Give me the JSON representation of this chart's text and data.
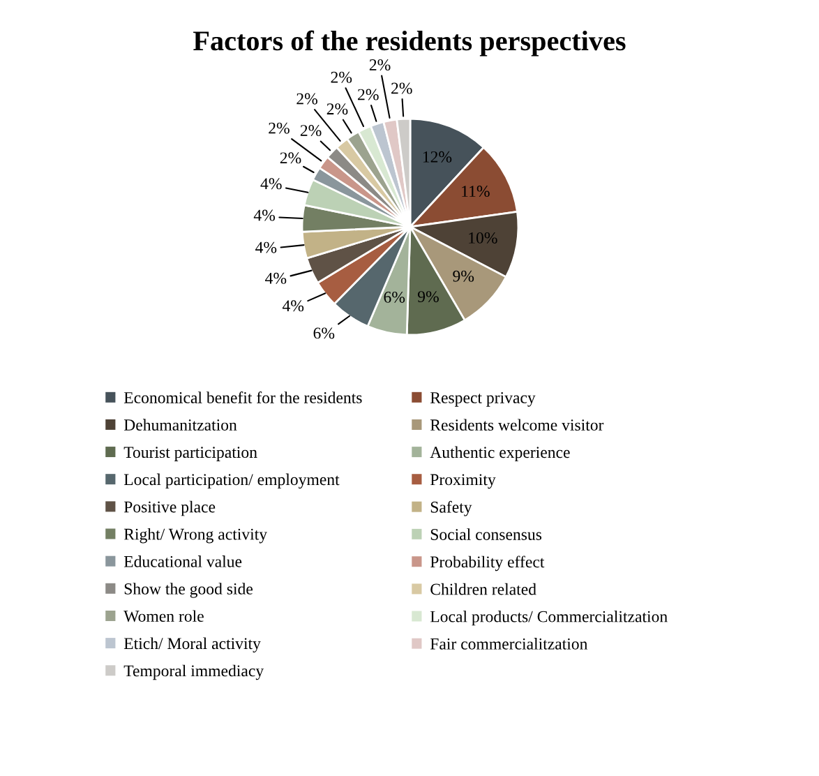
{
  "chart_data": {
    "type": "pie",
    "title": "Factors of the residents perspectives",
    "categories": [
      "Economical benefit for the residents",
      "Respect privacy",
      "Dehumanitzation",
      "Residents welcome visitor",
      "Tourist participation",
      "Authentic experience",
      "Local participation/ employment",
      "Proximity",
      "Positive place",
      "Safety",
      "Right/ Wrong activity",
      "Social consensus",
      "Educational value",
      "Probability effect",
      "Show the good side",
      "Children related",
      "Women role",
      "Local products/ Commercialitzation",
      "Etich/ Moral activity",
      "Fair commercialitzation",
      "Temporal immediacy"
    ],
    "values": [
      12,
      11,
      10,
      9,
      9,
      6,
      6,
      4,
      4,
      4,
      4,
      4,
      2,
      2,
      2,
      2,
      2,
      2,
      2,
      2,
      2
    ],
    "colors": [
      "#46525a",
      "#8b4c33",
      "#4e4236",
      "#a8987a",
      "#5f6b50",
      "#a3b39a",
      "#56676d",
      "#a75d41",
      "#5f5246",
      "#c2b287",
      "#737f63",
      "#bcd1b5",
      "#8a969c",
      "#c9968a",
      "#8c8a86",
      "#d8c9a3",
      "#9ca38f",
      "#d8e8d2",
      "#bcc5d0",
      "#e0c8c6",
      "#cdcbc8"
    ],
    "value_labels": [
      "12%",
      "11%",
      "10%",
      "9%",
      "9%",
      "6%",
      "6%",
      "4%",
      "4%",
      "4%",
      "4%",
      "4%",
      "2%",
      "2%",
      "2%",
      "2%",
      "2%",
      "2%",
      "2%",
      "2%",
      "2%"
    ],
    "legend": "bottom"
  }
}
